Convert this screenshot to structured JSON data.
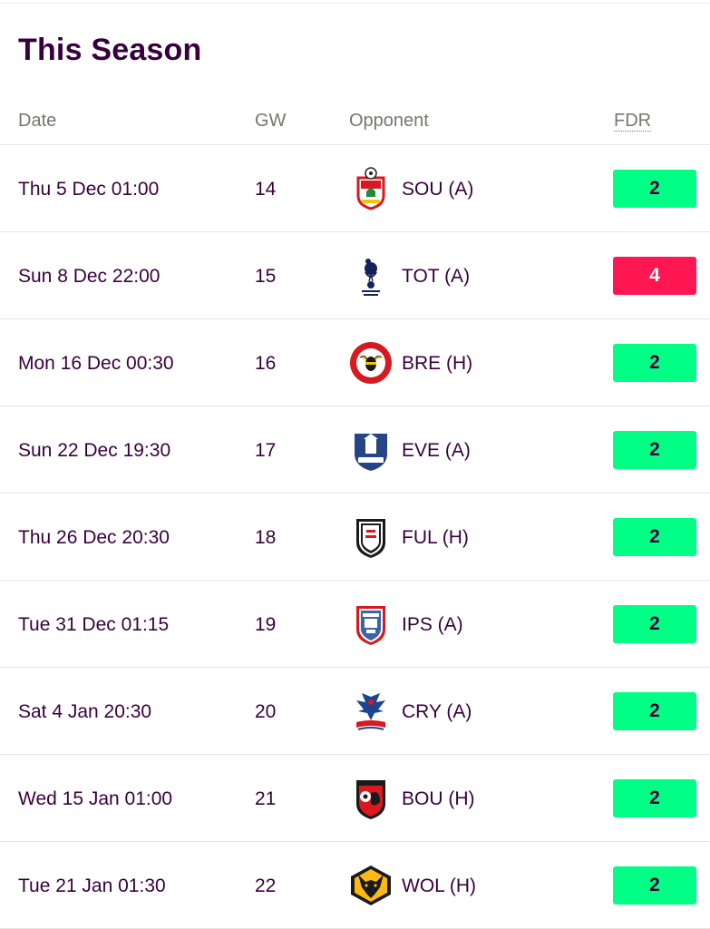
{
  "page": {
    "title": "This Season"
  },
  "table": {
    "headers": {
      "date": "Date",
      "gw": "GW",
      "opponent": "Opponent",
      "fdr": "FDR"
    },
    "fdr_colors": {
      "2": "#00ff85",
      "4": "#ff1751"
    },
    "rows": [
      {
        "date": "Thu 5 Dec 01:00",
        "gw": "14",
        "opponent": "SOU (A)",
        "fdr": "2",
        "crest": "southampton-crest-icon"
      },
      {
        "date": "Sun 8 Dec 22:00",
        "gw": "15",
        "opponent": "TOT (A)",
        "fdr": "4",
        "crest": "tottenham-crest-icon"
      },
      {
        "date": "Mon 16 Dec 00:30",
        "gw": "16",
        "opponent": "BRE (H)",
        "fdr": "2",
        "crest": "brentford-crest-icon"
      },
      {
        "date": "Sun 22 Dec 19:30",
        "gw": "17",
        "opponent": "EVE (A)",
        "fdr": "2",
        "crest": "everton-crest-icon"
      },
      {
        "date": "Thu 26 Dec 20:30",
        "gw": "18",
        "opponent": "FUL (H)",
        "fdr": "2",
        "crest": "fulham-crest-icon"
      },
      {
        "date": "Tue 31 Dec 01:15",
        "gw": "19",
        "opponent": "IPS (A)",
        "fdr": "2",
        "crest": "ipswich-crest-icon"
      },
      {
        "date": "Sat 4 Jan 20:30",
        "gw": "20",
        "opponent": "CRY (A)",
        "fdr": "2",
        "crest": "crystal-palace-crest-icon"
      },
      {
        "date": "Wed 15 Jan 01:00",
        "gw": "21",
        "opponent": "BOU (H)",
        "fdr": "2",
        "crest": "bournemouth-crest-icon"
      },
      {
        "date": "Tue 21 Jan 01:30",
        "gw": "22",
        "opponent": "WOL (H)",
        "fdr": "2",
        "crest": "wolves-crest-icon"
      }
    ]
  }
}
